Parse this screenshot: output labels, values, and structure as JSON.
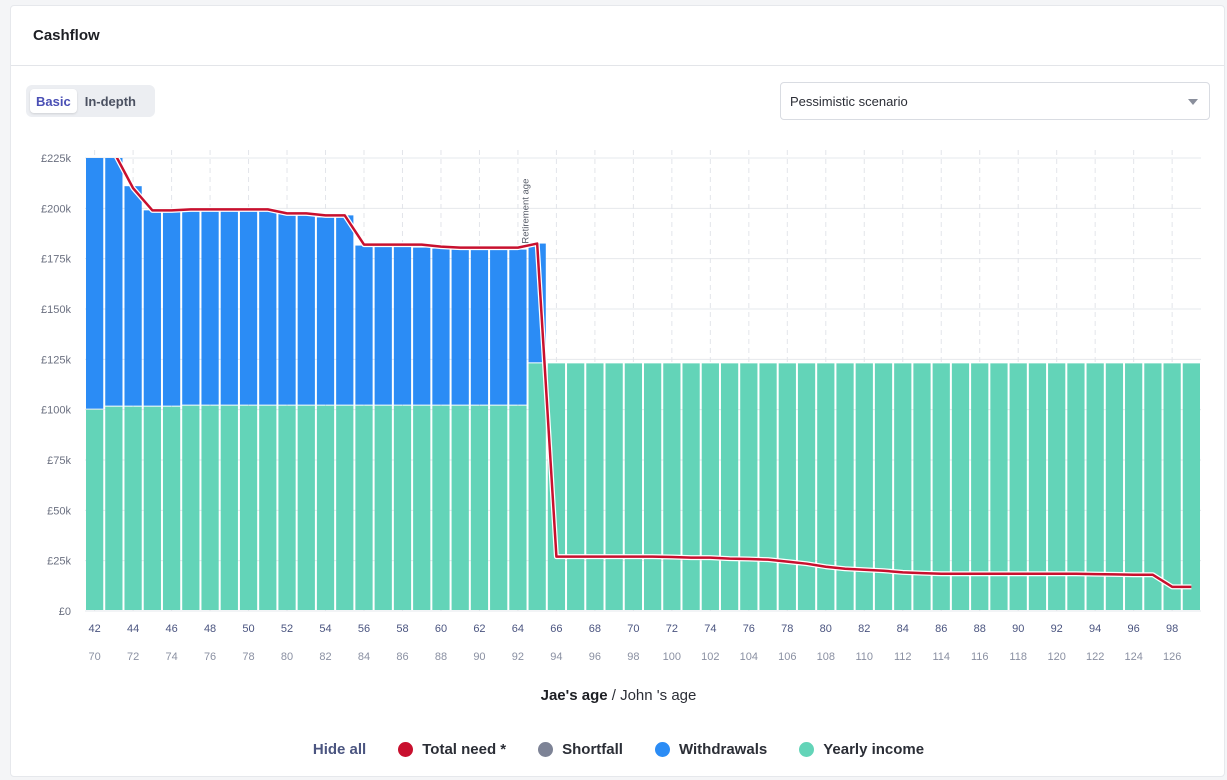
{
  "card": {
    "title": "Cashflow"
  },
  "toggle": {
    "basic_label": "Basic",
    "indepth_label": "In-depth"
  },
  "scenario_select": {
    "value": "Pessimistic scenario"
  },
  "x_title": {
    "primary": "Jae's age",
    "separator": " / ",
    "secondary": "John 's age"
  },
  "legend": {
    "hide_all": "Hide all",
    "items": [
      {
        "label": "Total need *",
        "color": "#c8102e"
      },
      {
        "label": "Shortfall",
        "color": "#7d8396"
      },
      {
        "label": "Withdrawals",
        "color": "#2b8cf5"
      },
      {
        "label": "Yearly income",
        "color": "#63d4b8"
      }
    ]
  },
  "chart_data": {
    "type": "bar",
    "stacked": true,
    "ylim": [
      0,
      225000
    ],
    "y_ticks": [
      "£0",
      "£25k",
      "£50k",
      "£75k",
      "£100k",
      "£125k",
      "£150k",
      "£175k",
      "£200k",
      "£225k"
    ],
    "y_tick_values": [
      0,
      25000,
      50000,
      75000,
      100000,
      125000,
      150000,
      175000,
      200000,
      225000
    ],
    "x_primary": [
      42,
      43,
      44,
      45,
      46,
      47,
      48,
      49,
      50,
      51,
      52,
      53,
      54,
      55,
      56,
      57,
      58,
      59,
      60,
      61,
      62,
      63,
      64,
      65,
      66,
      67,
      68,
      69,
      70,
      71,
      72,
      73,
      74,
      75,
      76,
      77,
      78,
      79,
      80,
      81,
      82,
      83,
      84,
      85,
      86,
      87,
      88,
      89,
      90,
      91,
      92,
      93,
      94,
      95,
      96,
      97,
      98,
      99
    ],
    "x_primary_labels": [
      "42",
      "44",
      "46",
      "48",
      "50",
      "52",
      "54",
      "56",
      "58",
      "60",
      "62",
      "64",
      "66",
      "68",
      "70",
      "72",
      "74",
      "76",
      "78",
      "80",
      "82",
      "84",
      "86",
      "88",
      "90",
      "92",
      "94",
      "96",
      "98"
    ],
    "x_secondary_labels": [
      "70",
      "72",
      "74",
      "76",
      "78",
      "80",
      "82",
      "84",
      "86",
      "88",
      "90",
      "92",
      "94",
      "96",
      "98",
      "100",
      "102",
      "104",
      "106",
      "108",
      "110",
      "112",
      "114",
      "116",
      "118",
      "120",
      "122",
      "124",
      "126"
    ],
    "annotation": {
      "label": "Retirement age",
      "x": 65
    },
    "grid": true,
    "series": [
      {
        "name": "Yearly income",
        "color": "#63d4b8",
        "values": [
          100000,
          101500,
          101500,
          101500,
          101500,
          102000,
          102000,
          102000,
          102000,
          102000,
          102000,
          102000,
          102000,
          102000,
          102000,
          102000,
          102000,
          102000,
          102000,
          102000,
          102000,
          102000,
          102000,
          123000,
          123000,
          123000,
          123000,
          123000,
          123000,
          123000,
          123000,
          123000,
          123000,
          123000,
          123000,
          123000,
          123000,
          123000,
          123000,
          123000,
          123000,
          123000,
          123000,
          123000,
          123000,
          123000,
          123000,
          123000,
          123000,
          123000,
          123000,
          123000,
          123000,
          123000,
          123000,
          123000,
          123000,
          123000
        ]
      },
      {
        "name": "Withdrawals",
        "color": "#2b8cf5",
        "values": [
          125000,
          123500,
          109500,
          97500,
          97000,
          97000,
          97000,
          97000,
          97000,
          96500,
          95500,
          94500,
          93500,
          94500,
          79500,
          79000,
          79000,
          78500,
          78000,
          77500,
          77500,
          77500,
          77500,
          59500,
          0,
          0,
          0,
          0,
          0,
          0,
          0,
          0,
          0,
          0,
          0,
          0,
          0,
          0,
          0,
          0,
          0,
          0,
          0,
          0,
          0,
          0,
          0,
          0,
          0,
          0,
          0,
          0,
          0,
          0,
          0,
          0,
          0,
          0
        ]
      },
      {
        "name": "Shortfall",
        "color": "#7d8396",
        "values": [
          0,
          0,
          0,
          0,
          0,
          0,
          0,
          0,
          0,
          0,
          0,
          0,
          0,
          0,
          0,
          0,
          0,
          0,
          0,
          0,
          0,
          0,
          0,
          0,
          0,
          0,
          0,
          0,
          0,
          0,
          0,
          0,
          0,
          0,
          0,
          0,
          0,
          0,
          0,
          0,
          0,
          0,
          0,
          0,
          0,
          0,
          0,
          0,
          0,
          0,
          0,
          0,
          0,
          0,
          0,
          0,
          0,
          0
        ]
      }
    ],
    "total_need": {
      "name": "Total need *",
      "color": "#c8102e",
      "values": [
        232000,
        228000,
        210000,
        199000,
        199000,
        199500,
        199500,
        199500,
        199500,
        199500,
        197500,
        197500,
        196500,
        196500,
        182000,
        182000,
        182000,
        182000,
        181000,
        180500,
        180500,
        180500,
        180500,
        182500,
        27000,
        27000,
        27000,
        27000,
        27000,
        27000,
        26800,
        26500,
        26500,
        26000,
        25800,
        25500,
        24500,
        23500,
        22000,
        21000,
        20500,
        20000,
        19200,
        18800,
        18500,
        18500,
        18500,
        18500,
        18500,
        18500,
        18500,
        18500,
        18300,
        18200,
        18000,
        18000,
        12000,
        12000
      ]
    }
  }
}
